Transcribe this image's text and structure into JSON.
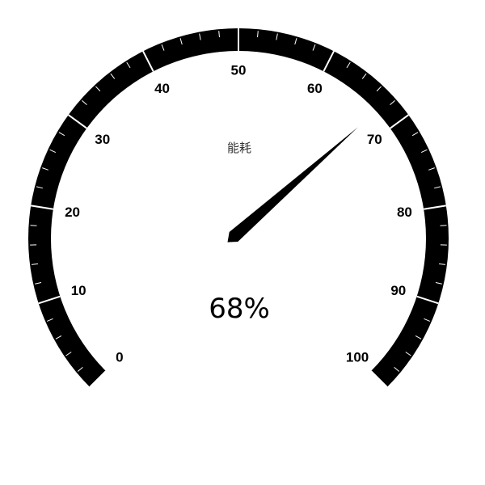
{
  "chart_data": {
    "type": "gauge",
    "title": "能耗",
    "value": 68,
    "value_label": "68%",
    "min": 0,
    "max": 100,
    "tick_labels": [
      "0",
      "10",
      "20",
      "30",
      "40",
      "50",
      "60",
      "70",
      "80",
      "90",
      "100"
    ],
    "tick_values": [
      0,
      10,
      20,
      30,
      40,
      50,
      60,
      70,
      80,
      90,
      100
    ],
    "colors": {
      "axis": "#000000",
      "ticks": "#ffffff",
      "pointer": "#000000",
      "title": "#333333",
      "value": "#000000"
    }
  }
}
